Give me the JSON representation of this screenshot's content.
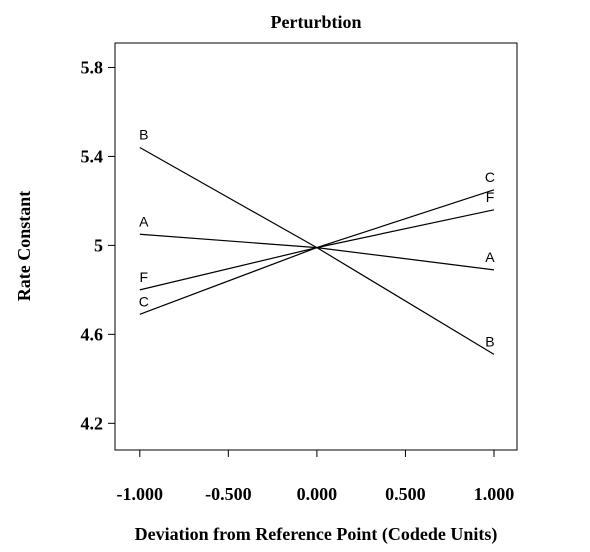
{
  "chart_data": {
    "type": "line",
    "title": "Perturbtion",
    "x_label": "Deviation from Reference Point (Codede Units)",
    "y_label": "Rate Constant",
    "x": [
      -1,
      0,
      1
    ],
    "series": [
      {
        "name": "A",
        "color": "#000000",
        "values": [
          5.05,
          4.99,
          4.89
        ]
      },
      {
        "name": "B",
        "color": "#000000",
        "values": [
          5.44,
          4.99,
          4.51
        ]
      },
      {
        "name": "C",
        "color": "#000000",
        "values": [
          4.69,
          4.99,
          5.25
        ]
      },
      {
        "name": "F",
        "color": "#000000",
        "values": [
          4.8,
          4.99,
          5.16
        ]
      }
    ],
    "xlim": [
      -1.14,
      1.13
    ],
    "xticks": [
      {
        "value": -1,
        "label": "-1.000"
      },
      {
        "value": -0.5,
        "label": "-0.500"
      },
      {
        "value": 0,
        "label": "0.000"
      },
      {
        "value": 0.5,
        "label": "0.500"
      },
      {
        "value": 1,
        "label": "1.000"
      }
    ],
    "ylim": [
      4.08,
      5.91
    ],
    "yticks": [
      {
        "value": 4.2,
        "label": "4.2"
      },
      {
        "value": 4.6,
        "label": "4.6"
      },
      5,
      {
        "value": 5.4,
        "label": "5.4"
      },
      {
        "value": 5.8,
        "label": "5.8"
      }
    ]
  }
}
